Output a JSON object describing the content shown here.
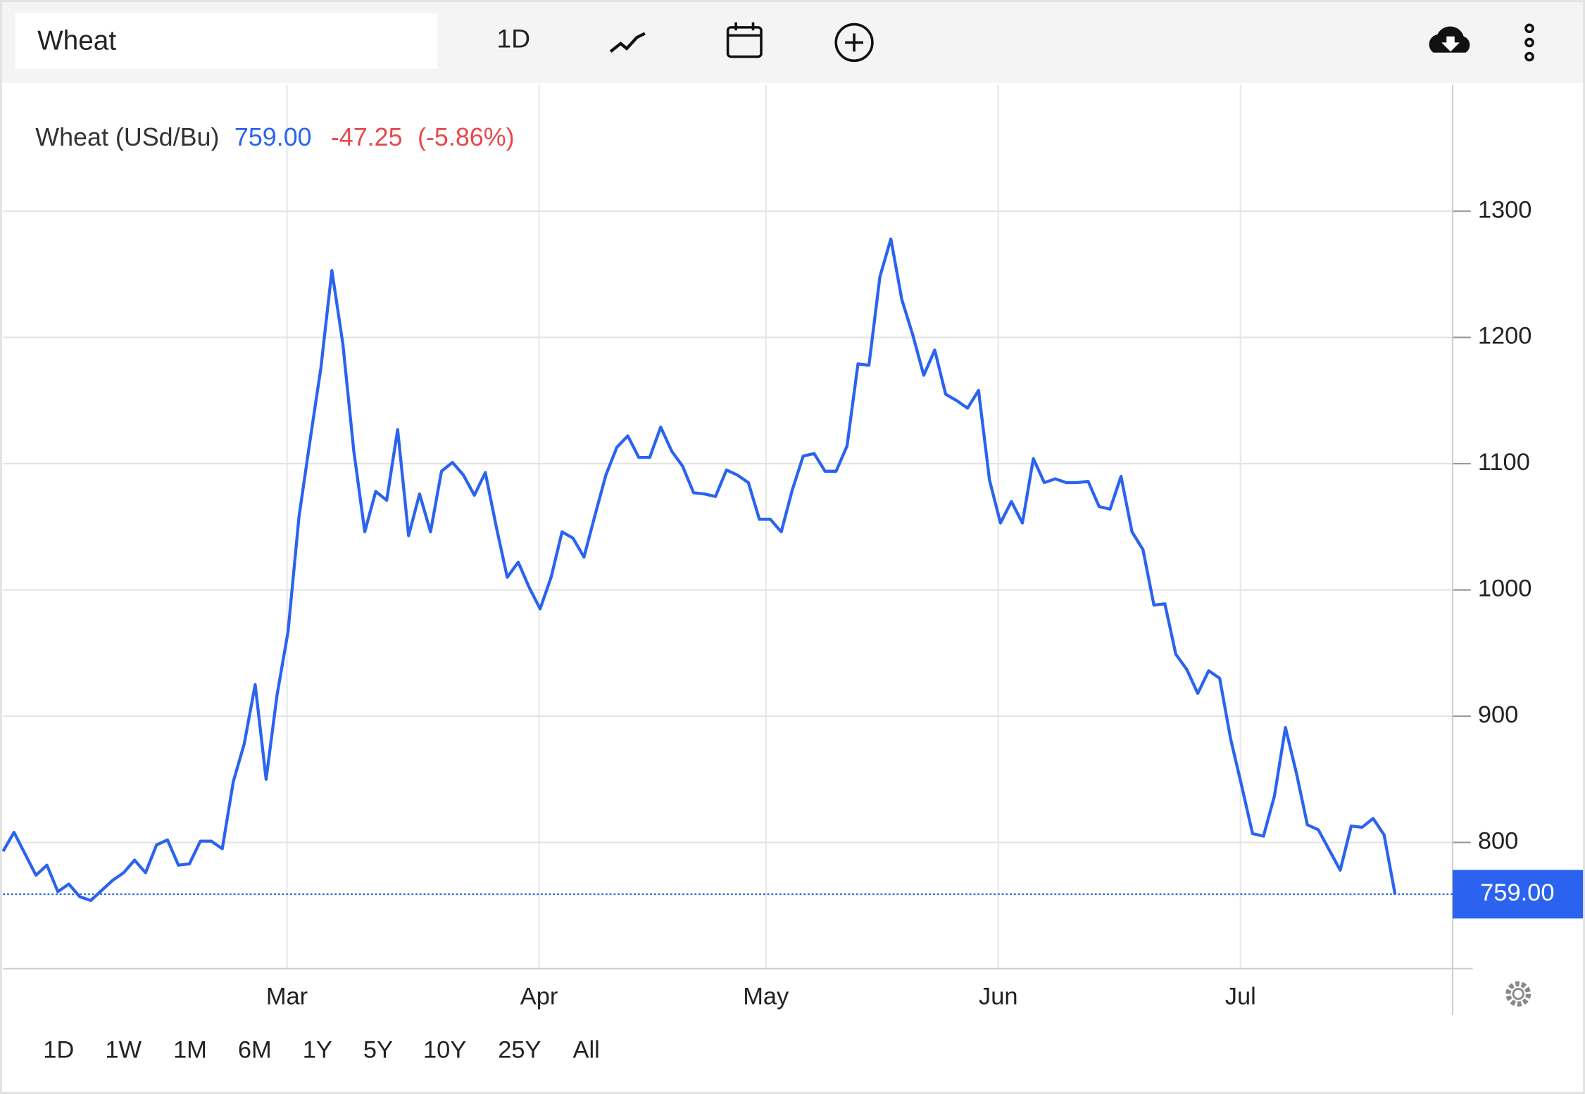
{
  "toolbar": {
    "search": "Wheat",
    "interval": "1D"
  },
  "legend": {
    "name": "Wheat (USd/Bu)",
    "price": "759.00",
    "change": "-47.25",
    "change_pct": "(-5.86%)"
  },
  "ranges": [
    "1D",
    "1W",
    "1M",
    "6M",
    "1Y",
    "5Y",
    "10Y",
    "25Y",
    "All"
  ],
  "chart_data": {
    "type": "line",
    "series": [
      {
        "name": "Wheat",
        "color": "#2b63f0",
        "values": [
          793,
          808,
          791,
          774,
          782,
          761,
          767,
          757,
          754,
          762,
          770,
          776,
          786,
          776,
          798,
          802,
          782,
          783,
          801,
          801,
          795,
          848,
          878,
          925,
          850,
          917,
          967,
          1058,
          1118,
          1176,
          1253,
          1195,
          1110,
          1046,
          1078,
          1071,
          1127,
          1043,
          1076,
          1046,
          1094,
          1101,
          1091,
          1075,
          1093,
          1050,
          1010,
          1022,
          1002,
          985,
          1010,
          1046,
          1041,
          1026,
          1059,
          1091,
          1113,
          1122,
          1105,
          1105,
          1129,
          1110,
          1098,
          1077,
          1076,
          1074,
          1095,
          1091,
          1085,
          1056,
          1056,
          1046,
          1079,
          1106,
          1108,
          1094,
          1094,
          1114,
          1179,
          1178,
          1248,
          1278,
          1230,
          1202,
          1170,
          1190,
          1155,
          1150,
          1144,
          1158,
          1087,
          1053,
          1070,
          1053,
          1104,
          1085,
          1088,
          1085,
          1085,
          1086,
          1066,
          1064,
          1090,
          1046,
          1032,
          988,
          989,
          949,
          937,
          918,
          936,
          930,
          882,
          845,
          807,
          805,
          837,
          891,
          855,
          814,
          810,
          794,
          778,
          813,
          812,
          819,
          806,
          759
        ]
      }
    ],
    "xlim": [
      -0.28,
      132.25
    ],
    "xticks": [
      {
        "value": 25.9,
        "label": "Mar"
      },
      {
        "value": 48.9,
        "label": "Apr"
      },
      {
        "value": 69.6,
        "label": "May"
      },
      {
        "value": 90.8,
        "label": "Jun"
      },
      {
        "value": 112.9,
        "label": "Jul"
      }
    ],
    "ylim": [
      700,
      1400
    ],
    "yticks": [
      800,
      900,
      1000,
      1100,
      1200,
      1300
    ],
    "grid": true
  }
}
